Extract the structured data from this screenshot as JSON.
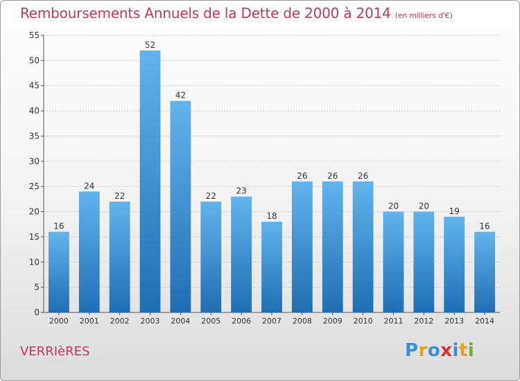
{
  "title": "Remboursements Annuels de la Dette de 2000 à 2014",
  "subtitle": "(en milliers d'€)",
  "commune": "VERRIèRES",
  "logo": {
    "letters": [
      "P",
      "r",
      "o",
      "x",
      "i",
      "t",
      "i"
    ],
    "colors": [
      "#3a8fd8",
      "#e8a020",
      "#3a8fd8",
      "#d83030",
      "#3a8fd8",
      "#e8a020",
      "#6cb030"
    ]
  },
  "colors": {
    "bar_top": "#62b4ec",
    "bar_bottom": "#1f6eb4",
    "title": "#c0395a",
    "grid": "#c8c8c8"
  },
  "chart_data": {
    "type": "bar",
    "categories": [
      "2000",
      "2001",
      "2002",
      "2003",
      "2004",
      "2005",
      "2006",
      "2007",
      "2008",
      "2009",
      "2010",
      "2011",
      "2012",
      "2013",
      "2014"
    ],
    "values": [
      16,
      24,
      22,
      52,
      42,
      22,
      23,
      18,
      26,
      26,
      26,
      20,
      20,
      19,
      16
    ],
    "title": "Remboursements Annuels de la Dette de 2000 à 2014",
    "ylim": [
      0,
      55
    ],
    "yticks": [
      0,
      5,
      10,
      15,
      20,
      25,
      30,
      35,
      40,
      45,
      50,
      55
    ],
    "grid": true
  }
}
